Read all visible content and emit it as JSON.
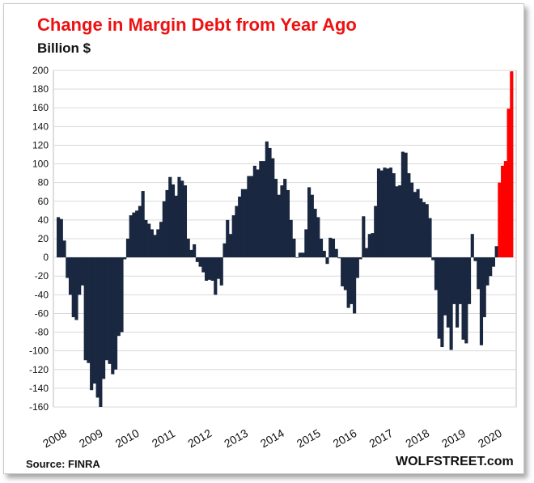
{
  "chart_data": {
    "type": "bar",
    "title": "Change in Margin Debt from Year Ago",
    "ylabel": "Billion $",
    "xlabel": "",
    "source": "Source: FINRA",
    "brand": "WOLFSTREET.com",
    "ylim": [
      -160,
      200
    ],
    "yticks": [
      "200",
      "180",
      "160",
      "140",
      "120",
      "100",
      "80",
      "60",
      "40",
      "20",
      "0",
      "-20",
      "-40",
      "-60",
      "-80",
      "-100",
      "-120",
      "-140",
      "-160"
    ],
    "xticks": [
      "2008",
      "2009",
      "2010",
      "2011",
      "2012",
      "2013",
      "2014",
      "2015",
      "2016",
      "2017",
      "2018",
      "2019",
      "2020"
    ],
    "grid": true,
    "colors": {
      "bars": "#1a2740",
      "highlight": "#ff0000",
      "title": "#ee1111"
    },
    "start": "2008-01",
    "values": [
      43,
      41,
      18,
      -22,
      -40,
      -64,
      -67,
      -40,
      -30,
      -110,
      -113,
      -142,
      -135,
      -150,
      -160,
      -130,
      -110,
      -114,
      -125,
      -120,
      -84,
      -80,
      -2,
      20,
      45,
      48,
      50,
      55,
      71,
      40,
      36,
      30,
      24,
      30,
      38,
      60,
      72,
      86,
      78,
      66,
      86,
      82,
      77,
      20,
      8,
      14,
      -5,
      -10,
      -16,
      -25,
      -24,
      -25,
      -40,
      -23,
      -30,
      15,
      40,
      25,
      45,
      55,
      65,
      73,
      73,
      87,
      87,
      98,
      94,
      103,
      103,
      124,
      117,
      106,
      84,
      67,
      77,
      84,
      72,
      40,
      20,
      0,
      5,
      5,
      30,
      75,
      67,
      52,
      43,
      20,
      7,
      -7,
      21,
      20,
      9,
      -1,
      -31,
      -35,
      -54,
      -50,
      -60,
      -22,
      -2,
      44,
      10,
      25,
      26,
      55,
      95,
      93,
      96,
      95,
      96,
      90,
      76,
      77,
      113,
      112,
      90,
      80,
      70,
      73,
      63,
      59,
      57,
      42,
      -3,
      -35,
      -87,
      -96,
      -62,
      -75,
      -99,
      -50,
      -75,
      -50,
      -88,
      -92,
      -50,
      25,
      -4,
      -34,
      -94,
      -64,
      -30,
      -20,
      -10,
      12,
      80,
      98,
      103,
      159,
      199
    ],
    "highlight_count": 5
  }
}
